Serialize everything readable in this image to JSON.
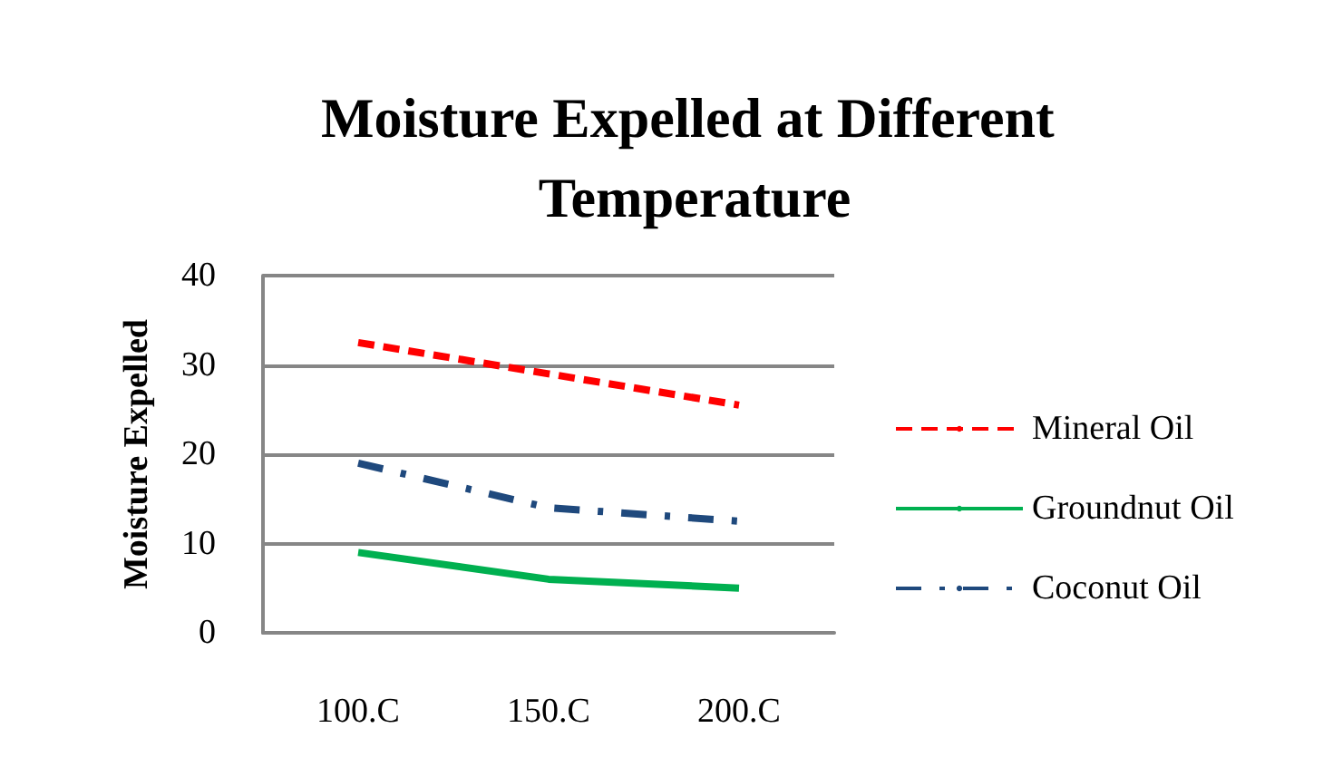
{
  "chart_data": {
    "type": "line",
    "title": "Moisture Expelled at Different Temperature",
    "ylabel": "Moisture Expelled",
    "categories": [
      "100.C",
      "150.C",
      "200.C"
    ],
    "series": [
      {
        "name": "Mineral Oil",
        "color": "#ff0000",
        "line_style": "dashed",
        "values": [
          32.5,
          29,
          25.5
        ]
      },
      {
        "name": "Groundnut Oil",
        "color": "#00b050",
        "line_style": "solid",
        "values": [
          9,
          6,
          5
        ]
      },
      {
        "name": "Coconut Oil",
        "color": "#1f497d",
        "line_style": "dashdot",
        "values": [
          19,
          14,
          12.5
        ]
      }
    ],
    "ylim": [
      0,
      40
    ],
    "yticks": [
      0,
      10,
      20,
      30,
      40
    ],
    "grid": "y",
    "legend": "right",
    "marker": "none"
  }
}
